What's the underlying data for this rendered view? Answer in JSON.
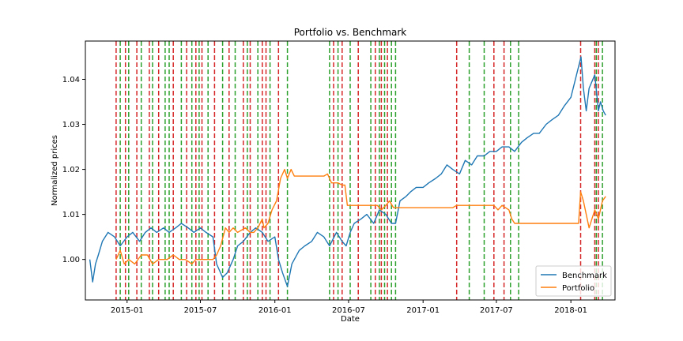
{
  "chart_data": {
    "type": "line",
    "title": "Portfolio vs. Benchmark",
    "xlabel": "Date",
    "ylabel": "Normalized prices",
    "xlim": [
      "2014-09-20",
      "2018-04-20"
    ],
    "ylim": [
      0.991,
      1.0485
    ],
    "xticks": [
      "2015-01",
      "2015-07",
      "2016-01",
      "2016-07",
      "2017-01",
      "2017-07",
      "2018-01"
    ],
    "yticks": [
      1.0,
      1.01,
      1.02,
      1.03,
      1.04
    ],
    "ytick_labels": [
      "1.00",
      "1.01",
      "1.02",
      "1.03",
      "1.04"
    ],
    "legend": {
      "placement": "bottom-right"
    },
    "colors": {
      "benchmark": "#1f77b4",
      "portfolio": "#ff7f0e",
      "buy": "#2ca02c",
      "sell": "#d62728"
    },
    "series": [
      {
        "name": "Benchmark",
        "x": [
          "2014-10-01",
          "2014-10-08",
          "2014-10-15",
          "2014-10-22",
          "2014-11-01",
          "2014-11-15",
          "2014-12-01",
          "2014-12-15",
          "2015-01-01",
          "2015-01-15",
          "2015-02-01",
          "2015-02-15",
          "2015-03-01",
          "2015-03-15",
          "2015-04-01",
          "2015-04-15",
          "2015-05-01",
          "2015-05-15",
          "2015-06-01",
          "2015-06-15",
          "2015-07-01",
          "2015-07-15",
          "2015-08-01",
          "2015-08-10",
          "2015-08-25",
          "2015-09-05",
          "2015-09-20",
          "2015-10-01",
          "2015-10-15",
          "2015-11-01",
          "2015-11-15",
          "2015-12-01",
          "2015-12-15",
          "2016-01-01",
          "2016-01-10",
          "2016-01-20",
          "2016-02-01",
          "2016-02-12",
          "2016-03-01",
          "2016-03-15",
          "2016-04-01",
          "2016-04-15",
          "2016-05-01",
          "2016-05-15",
          "2016-06-01",
          "2016-06-15",
          "2016-06-25",
          "2016-07-05",
          "2016-07-15",
          "2016-08-01",
          "2016-08-15",
          "2016-09-01",
          "2016-09-15",
          "2016-10-01",
          "2016-10-15",
          "2016-10-25",
          "2016-11-05",
          "2016-11-20",
          "2016-12-01",
          "2016-12-15",
          "2017-01-01",
          "2017-01-15",
          "2017-02-01",
          "2017-02-15",
          "2017-03-01",
          "2017-03-15",
          "2017-04-01",
          "2017-04-15",
          "2017-05-01",
          "2017-05-15",
          "2017-06-01",
          "2017-06-15",
          "2017-07-01",
          "2017-07-15",
          "2017-08-01",
          "2017-08-15",
          "2017-09-01",
          "2017-09-15",
          "2017-10-01",
          "2017-10-15",
          "2017-11-01",
          "2017-11-15",
          "2017-12-01",
          "2017-12-15",
          "2018-01-01",
          "2018-01-15",
          "2018-01-26",
          "2018-02-01",
          "2018-02-08",
          "2018-02-15",
          "2018-03-01",
          "2018-03-10",
          "2018-03-15",
          "2018-03-22",
          "2018-03-28"
        ],
        "values": [
          1.0,
          0.995,
          0.999,
          1.001,
          1.004,
          1.006,
          1.005,
          1.003,
          1.005,
          1.006,
          1.004,
          1.006,
          1.007,
          1.006,
          1.007,
          1.006,
          1.007,
          1.008,
          1.007,
          1.006,
          1.007,
          1.006,
          1.005,
          0.999,
          0.996,
          0.997,
          1.0,
          1.003,
          1.004,
          1.006,
          1.007,
          1.006,
          1.004,
          1.005,
          1.0,
          0.997,
          0.994,
          0.999,
          1.002,
          1.003,
          1.004,
          1.006,
          1.005,
          1.003,
          1.006,
          1.004,
          1.003,
          1.006,
          1.008,
          1.009,
          1.01,
          1.008,
          1.011,
          1.01,
          1.008,
          1.008,
          1.013,
          1.014,
          1.015,
          1.016,
          1.016,
          1.017,
          1.018,
          1.019,
          1.021,
          1.02,
          1.019,
          1.022,
          1.021,
          1.023,
          1.023,
          1.024,
          1.024,
          1.025,
          1.025,
          1.024,
          1.026,
          1.027,
          1.028,
          1.028,
          1.03,
          1.031,
          1.032,
          1.034,
          1.036,
          1.041,
          1.045,
          1.038,
          1.033,
          1.038,
          1.041,
          1.033,
          1.035,
          1.033,
          1.032
        ]
      },
      {
        "name": "Portfolio",
        "x": [
          "2014-12-05",
          "2014-12-15",
          "2014-12-25",
          "2015-01-05",
          "2015-01-20",
          "2015-02-05",
          "2015-02-20",
          "2015-03-05",
          "2015-03-20",
          "2015-04-10",
          "2015-04-25",
          "2015-05-10",
          "2015-05-25",
          "2015-06-10",
          "2015-06-20",
          "2015-07-05",
          "2015-07-20",
          "2015-08-01",
          "2015-08-10",
          "2015-08-20",
          "2015-09-01",
          "2015-09-10",
          "2015-09-20",
          "2015-10-01",
          "2015-10-20",
          "2015-11-01",
          "2015-11-10",
          "2015-11-20",
          "2015-12-01",
          "2015-12-05",
          "2015-12-15",
          "2015-12-25",
          "2016-01-05",
          "2016-01-15",
          "2016-01-25",
          "2016-02-01",
          "2016-02-10",
          "2016-02-18",
          "2016-05-01",
          "2016-05-10",
          "2016-05-20",
          "2016-06-05",
          "2016-06-15",
          "2016-06-22",
          "2016-06-28",
          "2016-09-10",
          "2016-09-20",
          "2016-10-01",
          "2016-10-10",
          "2016-10-20",
          "2016-11-01",
          "2017-03-01",
          "2017-03-15",
          "2017-03-25",
          "2017-06-25",
          "2017-07-05",
          "2017-07-15",
          "2017-08-01",
          "2017-08-08",
          "2017-08-15",
          "2017-08-25",
          "2018-01-20",
          "2018-01-25",
          "2018-02-01",
          "2018-02-08",
          "2018-02-15",
          "2018-03-01",
          "2018-03-10",
          "2018-03-20",
          "2018-03-28"
        ],
        "values": [
          1.0,
          1.002,
          0.999,
          1.0,
          0.999,
          1.001,
          1.001,
          0.999,
          1.0,
          1.0,
          1.001,
          1.0,
          1.0,
          0.999,
          1.0,
          1.0,
          1.0,
          1.0,
          1.001,
          1.003,
          1.007,
          1.006,
          1.007,
          1.006,
          1.007,
          1.006,
          1.006,
          1.007,
          1.009,
          1.007,
          1.008,
          1.011,
          1.013,
          1.018,
          1.02,
          1.018,
          1.02,
          1.0185,
          1.0185,
          1.019,
          1.017,
          1.017,
          1.0165,
          1.0165,
          1.012,
          1.012,
          1.011,
          1.012,
          1.013,
          1.0115,
          1.0115,
          1.0115,
          1.0115,
          1.012,
          1.012,
          1.011,
          1.012,
          1.011,
          1.009,
          1.008,
          1.008,
          1.008,
          1.015,
          1.013,
          1.01,
          1.007,
          1.011,
          1.009,
          1.013,
          1.014
        ]
      }
    ],
    "vlines": {
      "sell": [
        "2014-12-05",
        "2014-12-28",
        "2015-01-25",
        "2015-02-25",
        "2015-03-20",
        "2015-04-25",
        "2015-05-28",
        "2015-06-20",
        "2015-07-05",
        "2015-08-05",
        "2015-09-10",
        "2015-10-15",
        "2015-11-01",
        "2015-12-01",
        "2015-12-10",
        "2016-01-10",
        "2016-05-25",
        "2016-06-15",
        "2016-07-25",
        "2016-09-05",
        "2016-09-20",
        "2016-10-05",
        "2017-03-25",
        "2017-06-25",
        "2017-07-20",
        "2018-01-25",
        "2018-03-01",
        "2018-03-10"
      ],
      "buy": [
        "2014-12-15",
        "2015-01-05",
        "2015-02-05",
        "2015-03-05",
        "2015-04-05",
        "2015-04-15",
        "2015-05-15",
        "2015-06-10",
        "2015-06-28",
        "2015-07-20",
        "2015-08-25",
        "2015-09-25",
        "2015-10-25",
        "2015-11-20",
        "2015-12-20",
        "2016-02-01",
        "2016-05-15",
        "2016-06-05",
        "2016-07-05",
        "2016-08-25",
        "2016-09-15",
        "2016-09-28",
        "2016-10-15",
        "2016-10-25",
        "2017-04-25",
        "2017-06-01",
        "2017-08-05",
        "2017-08-25",
        "2018-03-05",
        "2018-03-20"
      ]
    }
  },
  "legend": {
    "items": [
      {
        "label": "Benchmark",
        "color": "#1f77b4"
      },
      {
        "label": "Portfolio",
        "color": "#ff7f0e"
      }
    ]
  }
}
